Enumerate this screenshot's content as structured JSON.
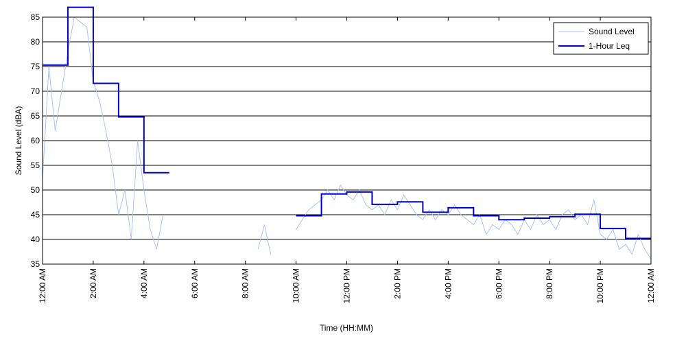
{
  "chart_data": {
    "type": "line",
    "x_label": "Time (HH:MM)",
    "y_label": "Sound Level (dBA)",
    "xlim": [
      0,
      24
    ],
    "ylim": [
      35,
      85
    ],
    "xticks": [
      {
        "value": 0,
        "label": "12:00 AM"
      },
      {
        "value": 2,
        "label": "2:00 AM"
      },
      {
        "value": 4,
        "label": "4:00 AM"
      },
      {
        "value": 6,
        "label": "6:00 AM"
      },
      {
        "value": 8,
        "label": "8:00 AM"
      },
      {
        "value": 10,
        "label": "10:00 AM"
      },
      {
        "value": 12,
        "label": "12:00 PM"
      },
      {
        "value": 14,
        "label": "2:00 PM"
      },
      {
        "value": 16,
        "label": "4:00 PM"
      },
      {
        "value": 18,
        "label": "6:00 PM"
      },
      {
        "value": 20,
        "label": "8:00 PM"
      },
      {
        "value": 22,
        "label": "10:00 PM"
      },
      {
        "value": 24,
        "label": "12:00 AM"
      }
    ],
    "yticks": [
      35,
      40,
      45,
      50,
      55,
      60,
      65,
      70,
      75,
      80,
      85
    ],
    "grid": true,
    "legend": "upper right",
    "series": [
      {
        "name": "Sound Level",
        "color": "#a9c3f2",
        "drawstyle": "line",
        "x": [
          0,
          0.25,
          0.5,
          0.75,
          1,
          1.25,
          1.5,
          1.75,
          2,
          2.25,
          2.5,
          2.75,
          3,
          3.25,
          3.5,
          3.75,
          4,
          4.25,
          4.5,
          4.75,
          5,
          5.25,
          5.5,
          5.75,
          6,
          6.25,
          6.5,
          6.75,
          7,
          7.25,
          7.5,
          7.75,
          8,
          8.25,
          8.5,
          8.75,
          9,
          9.25,
          9.5,
          9.75,
          10,
          10.25,
          10.5,
          10.75,
          11,
          11.25,
          11.5,
          11.75,
          12,
          12.25,
          12.5,
          12.75,
          13,
          13.25,
          13.5,
          13.75,
          14,
          14.25,
          14.5,
          14.75,
          15,
          15.25,
          15.5,
          15.75,
          16,
          16.25,
          16.5,
          16.75,
          17,
          17.25,
          17.5,
          17.75,
          18,
          18.25,
          18.5,
          18.75,
          19,
          19.25,
          19.5,
          19.75,
          20,
          20.25,
          20.5,
          20.75,
          21,
          21.25,
          21.5,
          21.75,
          22,
          22.25,
          22.5,
          22.75,
          23,
          23.25,
          23.5,
          23.75,
          24
        ],
        "values": [
          52,
          75,
          62,
          70,
          78,
          85,
          84,
          83,
          72,
          68,
          62,
          55,
          45,
          50,
          40,
          60,
          50,
          42,
          38,
          45,
          null,
          null,
          null,
          null,
          null,
          null,
          null,
          null,
          null,
          null,
          null,
          null,
          null,
          null,
          38,
          43,
          37,
          null,
          null,
          null,
          42,
          44,
          46,
          47,
          48,
          50,
          48,
          51,
          49,
          48,
          50,
          47,
          46,
          47,
          45,
          48,
          46,
          49,
          47,
          45,
          44,
          46,
          44,
          46,
          45,
          47,
          45,
          44,
          43,
          45,
          41,
          43,
          42,
          44,
          43,
          41,
          44,
          42,
          45,
          43,
          44,
          42,
          45,
          46,
          44,
          45,
          43,
          48,
          41,
          40,
          42,
          38,
          39,
          37,
          41,
          38,
          36
        ]
      },
      {
        "name": "1-Hour Leq",
        "color": "#0000cc",
        "drawstyle": "steps-post",
        "x": [
          0,
          1,
          2,
          3,
          4,
          5,
          6,
          7,
          8,
          9,
          10,
          11,
          12,
          13,
          14,
          15,
          16,
          17,
          18,
          19,
          20,
          21,
          22,
          23
        ],
        "values": [
          75.3,
          87,
          71.6,
          64.8,
          53.5,
          null,
          null,
          null,
          null,
          null,
          44.8,
          49.2,
          49.6,
          47.1,
          47.6,
          45.5,
          46.4,
          44.8,
          44.0,
          44.3,
          44.6,
          45.1,
          42.2,
          40.2
        ]
      }
    ]
  }
}
